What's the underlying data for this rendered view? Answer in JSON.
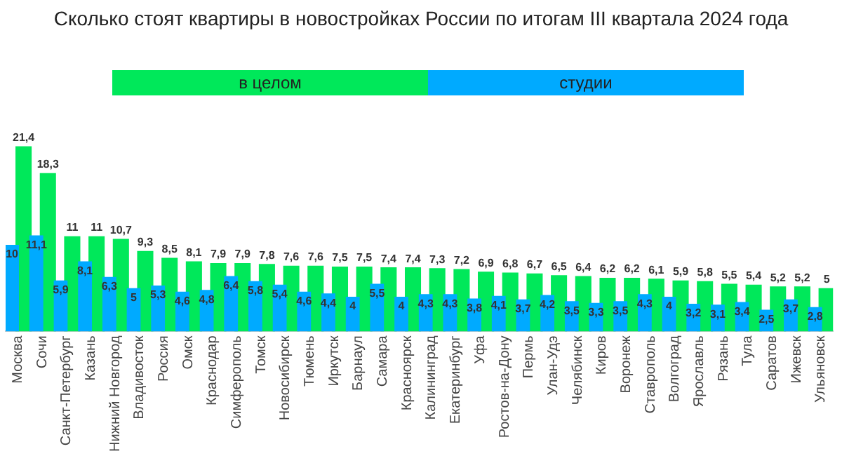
{
  "chart_data": {
    "type": "bar",
    "title": "Сколько стоят квартиры в новостройках России по итогам III квартала 2024 года",
    "categories": [
      "Москва",
      "Сочи",
      "Санкт-Петербург",
      "Казань",
      "Нижний Новгород",
      "Владивосток",
      "Россия",
      "Омск",
      "Краснодар",
      "Симферополь",
      "Томск",
      "Новосибирск",
      "Тюмень",
      "Иркутск",
      "Барнаул",
      "Самара",
      "Красноярск",
      "Калининград",
      "Екатеринбург",
      "Уфа",
      "Ростов-на-Дону",
      "Пермь",
      "Улан-Удэ",
      "Челябинск",
      "Киров",
      "Воронеж",
      "Ставрополь",
      "Волгоград",
      "Ярославль",
      "Рязань",
      "Тула",
      "Саратов",
      "Ижевск",
      "Ульяновск"
    ],
    "series": [
      {
        "name": "в целом",
        "color": "#00e85a",
        "values": [
          21.4,
          18.3,
          11,
          11,
          10.7,
          9.3,
          8.5,
          8.1,
          7.9,
          7.9,
          7.8,
          7.6,
          7.6,
          7.5,
          7.5,
          7.4,
          7.4,
          7.3,
          7.2,
          6.9,
          6.8,
          6.7,
          6.5,
          6.4,
          6.2,
          6.2,
          6.1,
          5.9,
          5.8,
          5.5,
          5.4,
          5.2,
          5.2,
          5
        ],
        "value_labels": [
          "21,4",
          "18,3",
          "11",
          "11",
          "10,7",
          "9,3",
          "8,5",
          "8,1",
          "7,9",
          "7,9",
          "7,8",
          "7,6",
          "7,6",
          "7,5",
          "7,5",
          "7,4",
          "7,4",
          "7,3",
          "7,2",
          "6,9",
          "6,8",
          "6,7",
          "6,5",
          "6,4",
          "6,2",
          "6,2",
          "6,1",
          "5,9",
          "5,8",
          "5,5",
          "5,4",
          "5,2",
          "5,2",
          "5"
        ]
      },
      {
        "name": "студии",
        "color": "#00aaff",
        "values": [
          10,
          11.1,
          5.9,
          8.1,
          6.3,
          5,
          5.3,
          4.6,
          4.8,
          6.4,
          5.8,
          5.4,
          4.6,
          4.4,
          4,
          5.5,
          4,
          4.3,
          4.3,
          3.8,
          4.1,
          3.7,
          4.2,
          3.5,
          3.3,
          3.5,
          4.3,
          4,
          3.2,
          3.1,
          3.4,
          2.5,
          3.7,
          2.8
        ],
        "value_labels": [
          "10",
          "11,1",
          "5,9",
          "8,1",
          "6,3",
          "5",
          "5,3",
          "4,6",
          "4,8",
          "6,4",
          "5,8",
          "5,4",
          "4,6",
          "4,4",
          "4",
          "5,5",
          "4",
          "4,3",
          "4,3",
          "3,8",
          "4,1",
          "3,7",
          "4,2",
          "3,5",
          "3,3",
          "3,5",
          "4,3",
          "4",
          "3,2",
          "3,1",
          "3,4",
          "2,5",
          "3,7",
          "2,8"
        ]
      }
    ],
    "legend": "top",
    "grid": false
  }
}
